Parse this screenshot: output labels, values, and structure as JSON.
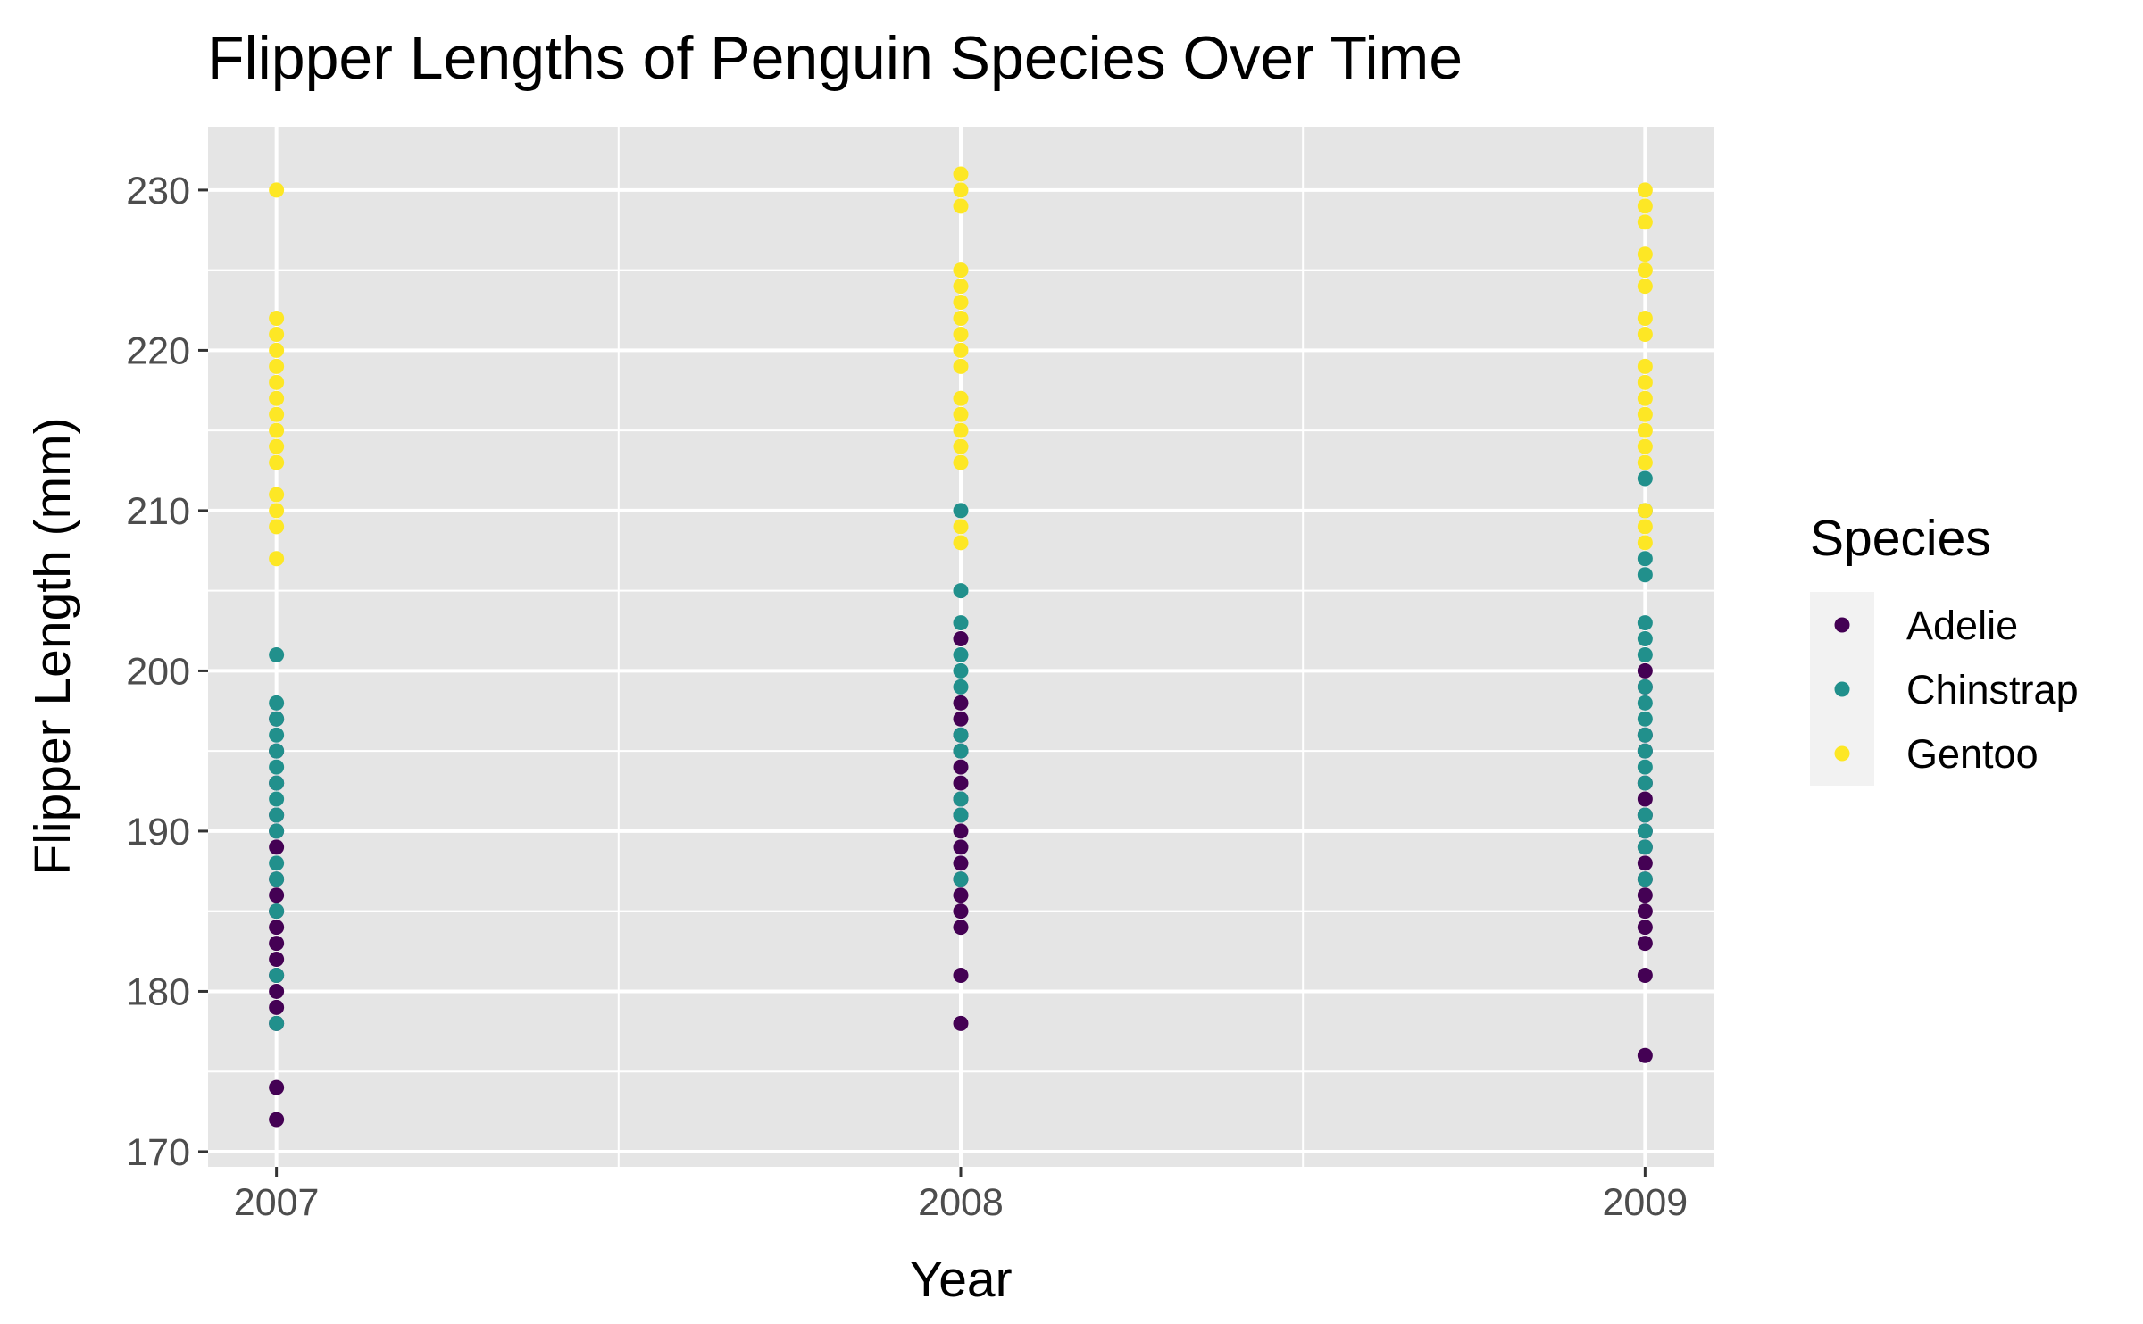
{
  "chart_data": {
    "type": "scatter",
    "title": "Flipper Lengths of Penguin Species Over Time",
    "xlabel": "Year",
    "ylabel": "Flipper Length (mm)",
    "x_ticks": [
      "2007",
      "2008",
      "2009"
    ],
    "y_ticks": [
      170,
      180,
      190,
      200,
      210,
      220,
      230
    ],
    "xlim": [
      2006.9,
      2009.1
    ],
    "ylim": [
      169.05,
      233.95
    ],
    "grid": true,
    "legend": {
      "title": "Species",
      "position": "right"
    },
    "series": [
      {
        "name": "Adelie",
        "color": "#440154",
        "points": [
          [
            2007,
            172
          ],
          [
            2007,
            174
          ],
          [
            2007,
            178
          ],
          [
            2007,
            179
          ],
          [
            2007,
            180
          ],
          [
            2007,
            181
          ],
          [
            2007,
            182
          ],
          [
            2007,
            183
          ],
          [
            2007,
            184
          ],
          [
            2007,
            185
          ],
          [
            2007,
            186
          ],
          [
            2007,
            187
          ],
          [
            2007,
            189
          ],
          [
            2007,
            190
          ],
          [
            2007,
            191
          ],
          [
            2007,
            193
          ],
          [
            2007,
            195
          ],
          [
            2007,
            197
          ],
          [
            2008,
            178
          ],
          [
            2008,
            181
          ],
          [
            2008,
            184
          ],
          [
            2008,
            185
          ],
          [
            2008,
            186
          ],
          [
            2008,
            187
          ],
          [
            2008,
            188
          ],
          [
            2008,
            189
          ],
          [
            2008,
            190
          ],
          [
            2008,
            191
          ],
          [
            2008,
            192
          ],
          [
            2008,
            193
          ],
          [
            2008,
            194
          ],
          [
            2008,
            195
          ],
          [
            2008,
            196
          ],
          [
            2008,
            197
          ],
          [
            2008,
            198
          ],
          [
            2008,
            202
          ],
          [
            2009,
            176
          ],
          [
            2009,
            181
          ],
          [
            2009,
            183
          ],
          [
            2009,
            184
          ],
          [
            2009,
            185
          ],
          [
            2009,
            186
          ],
          [
            2009,
            187
          ],
          [
            2009,
            188
          ],
          [
            2009,
            189
          ],
          [
            2009,
            190
          ],
          [
            2009,
            191
          ],
          [
            2009,
            192
          ],
          [
            2009,
            193
          ],
          [
            2009,
            195
          ],
          [
            2009,
            196
          ],
          [
            2009,
            199
          ],
          [
            2009,
            200
          ]
        ]
      },
      {
        "name": "Chinstrap",
        "color": "#21908C",
        "points": [
          [
            2007,
            178
          ],
          [
            2007,
            181
          ],
          [
            2007,
            185
          ],
          [
            2007,
            187
          ],
          [
            2007,
            188
          ],
          [
            2007,
            190
          ],
          [
            2007,
            191
          ],
          [
            2007,
            192
          ],
          [
            2007,
            193
          ],
          [
            2007,
            194
          ],
          [
            2007,
            195
          ],
          [
            2007,
            196
          ],
          [
            2007,
            197
          ],
          [
            2007,
            198
          ],
          [
            2007,
            201
          ],
          [
            2008,
            187
          ],
          [
            2008,
            191
          ],
          [
            2008,
            192
          ],
          [
            2008,
            195
          ],
          [
            2008,
            196
          ],
          [
            2008,
            199
          ],
          [
            2008,
            200
          ],
          [
            2008,
            201
          ],
          [
            2008,
            203
          ],
          [
            2008,
            205
          ],
          [
            2008,
            210
          ],
          [
            2009,
            187
          ],
          [
            2009,
            189
          ],
          [
            2009,
            190
          ],
          [
            2009,
            191
          ],
          [
            2009,
            193
          ],
          [
            2009,
            194
          ],
          [
            2009,
            195
          ],
          [
            2009,
            196
          ],
          [
            2009,
            197
          ],
          [
            2009,
            198
          ],
          [
            2009,
            199
          ],
          [
            2009,
            201
          ],
          [
            2009,
            202
          ],
          [
            2009,
            203
          ],
          [
            2009,
            206
          ],
          [
            2009,
            207
          ],
          [
            2009,
            210
          ],
          [
            2009,
            212
          ]
        ]
      },
      {
        "name": "Gentoo",
        "color": "#FDE725",
        "points": [
          [
            2007,
            207
          ],
          [
            2007,
            209
          ],
          [
            2007,
            210
          ],
          [
            2007,
            211
          ],
          [
            2007,
            213
          ],
          [
            2007,
            214
          ],
          [
            2007,
            215
          ],
          [
            2007,
            216
          ],
          [
            2007,
            217
          ],
          [
            2007,
            218
          ],
          [
            2007,
            219
          ],
          [
            2007,
            220
          ],
          [
            2007,
            221
          ],
          [
            2007,
            222
          ],
          [
            2007,
            230
          ],
          [
            2008,
            208
          ],
          [
            2008,
            209
          ],
          [
            2008,
            213
          ],
          [
            2008,
            214
          ],
          [
            2008,
            215
          ],
          [
            2008,
            216
          ],
          [
            2008,
            217
          ],
          [
            2008,
            219
          ],
          [
            2008,
            220
          ],
          [
            2008,
            221
          ],
          [
            2008,
            222
          ],
          [
            2008,
            223
          ],
          [
            2008,
            224
          ],
          [
            2008,
            225
          ],
          [
            2008,
            229
          ],
          [
            2008,
            230
          ],
          [
            2008,
            231
          ],
          [
            2009,
            208
          ],
          [
            2009,
            209
          ],
          [
            2009,
            210
          ],
          [
            2009,
            213
          ],
          [
            2009,
            214
          ],
          [
            2009,
            215
          ],
          [
            2009,
            216
          ],
          [
            2009,
            217
          ],
          [
            2009,
            218
          ],
          [
            2009,
            219
          ],
          [
            2009,
            221
          ],
          [
            2009,
            222
          ],
          [
            2009,
            224
          ],
          [
            2009,
            225
          ],
          [
            2009,
            226
          ],
          [
            2009,
            228
          ],
          [
            2009,
            229
          ],
          [
            2009,
            230
          ]
        ]
      }
    ]
  }
}
